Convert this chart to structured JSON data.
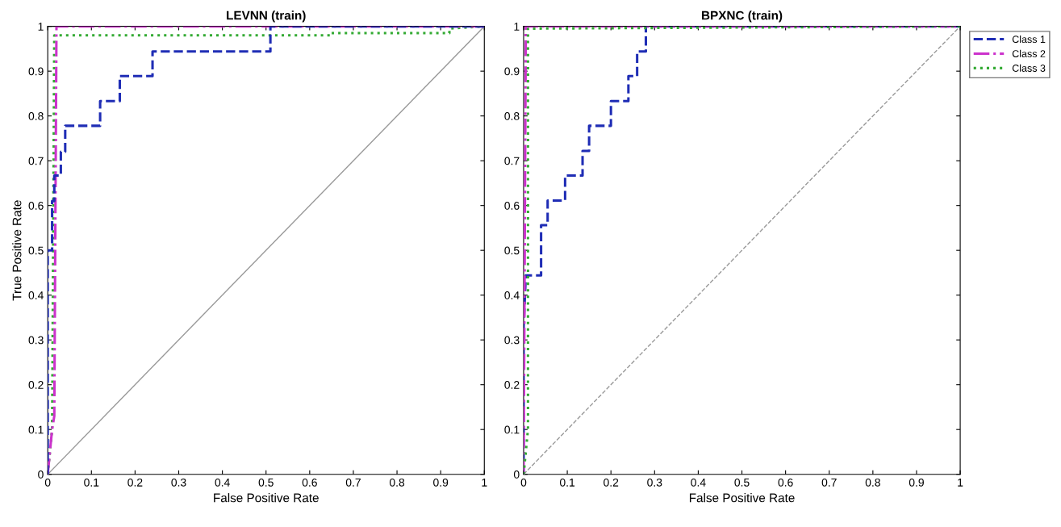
{
  "chart_data": [
    {
      "type": "line",
      "title": "LEVNN (train)",
      "xlabel": "False Positive Rate",
      "ylabel": "True Positive Rate",
      "xlim": [
        0,
        1
      ],
      "ylim": [
        0,
        1
      ],
      "xticks": [
        0,
        0.1,
        0.2,
        0.3,
        0.4,
        0.5,
        0.6,
        0.7,
        0.8,
        0.9,
        1
      ],
      "yticks": [
        0,
        0.1,
        0.2,
        0.3,
        0.4,
        0.5,
        0.6,
        0.7,
        0.8,
        0.9,
        1
      ],
      "grid": false,
      "legend": false,
      "series": [
        {
          "color": "#999999",
          "line_style": "solid",
          "x": [
            0,
            1
          ],
          "values": [
            0,
            1
          ]
        },
        {
          "color": "#33aa33",
          "line_style": "dotted",
          "x": [
            0,
            0.01,
            0.015,
            0.65,
            0.65,
            0.92,
            0.92,
            1
          ],
          "values": [
            0,
            0.1,
            0.98,
            0.98,
            0.985,
            0.985,
            0.995,
            1
          ]
        },
        {
          "color": "#cc33cc",
          "line_style": "dashdot",
          "x": [
            0,
            0.005,
            0.01,
            0.015,
            0.02,
            1
          ],
          "values": [
            0,
            0.05,
            0.1,
            0.13,
            1,
            1
          ]
        },
        {
          "color": "#1f2db5",
          "line_style": "dashed",
          "x": [
            0,
            0,
            0.01,
            0.01,
            0.015,
            0.015,
            0.03,
            0.03,
            0.04,
            0.04,
            0.12,
            0.12,
            0.165,
            0.165,
            0.24,
            0.24,
            0.51,
            0.51,
            1
          ],
          "values": [
            0,
            0.5,
            0.5,
            0.61,
            0.61,
            0.667,
            0.667,
            0.72,
            0.72,
            0.778,
            0.778,
            0.833,
            0.833,
            0.889,
            0.889,
            0.944,
            0.944,
            1,
            1
          ]
        }
      ]
    },
    {
      "type": "line",
      "title": "BPXNC (train)",
      "xlabel": "False Positive Rate",
      "xlim": [
        0,
        1
      ],
      "ylim": [
        0,
        1
      ],
      "xticks": [
        0,
        0.1,
        0.2,
        0.3,
        0.4,
        0.5,
        0.6,
        0.7,
        0.8,
        0.9,
        1
      ],
      "yticks": [
        0,
        0.1,
        0.2,
        0.3,
        0.4,
        0.5,
        0.6,
        0.7,
        0.8,
        0.9,
        1
      ],
      "grid": false,
      "legend": "top right",
      "series": [
        {
          "color": "#999999",
          "line_style": "dashed",
          "x": [
            0,
            1
          ],
          "values": [
            0,
            1
          ]
        },
        {
          "name": "Class 1",
          "color": "#1f2db5",
          "line_style": "dashed",
          "x": [
            0,
            0,
            0.005,
            0.04,
            0.04,
            0.055,
            0.055,
            0.095,
            0.095,
            0.135,
            0.135,
            0.15,
            0.15,
            0.2,
            0.2,
            0.24,
            0.24,
            0.26,
            0.26,
            0.28,
            0.28,
            1
          ],
          "values": [
            0,
            0.33,
            0.444,
            0.444,
            0.556,
            0.556,
            0.611,
            0.611,
            0.667,
            0.667,
            0.722,
            0.722,
            0.778,
            0.778,
            0.833,
            0.833,
            0.889,
            0.889,
            0.944,
            0.944,
            1,
            1
          ]
        },
        {
          "name": "Class 2",
          "color": "#cc33cc",
          "line_style": "dashdot",
          "x": [
            0,
            0.005,
            0.005,
            1
          ],
          "values": [
            0,
            0.99,
            1,
            1
          ]
        },
        {
          "name": "Class 3",
          "color": "#33aa33",
          "line_style": "dotted",
          "x": [
            0,
            0.01,
            0.01,
            1
          ],
          "values": [
            0,
            0.1,
            0.995,
            1
          ]
        }
      ]
    }
  ]
}
